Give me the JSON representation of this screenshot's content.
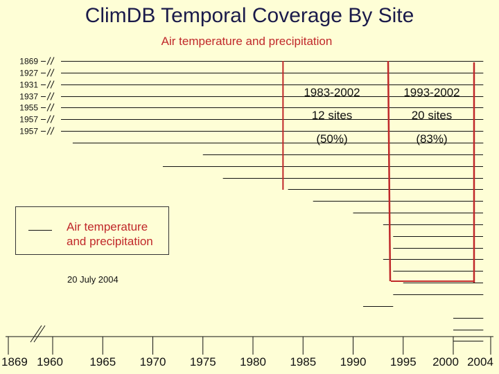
{
  "title": "ClimDB Temporal Coverage By Site",
  "subtitle": "Air temperature and precipitation",
  "legend": {
    "label_line1": "Air temperature",
    "label_line2": "and precipitation"
  },
  "footer": {
    "date": "20 July 2004"
  },
  "stats": [
    {
      "period": "1983-2002",
      "sites": "12 sites",
      "percent": "(50%)"
    },
    {
      "period": "1993-2002",
      "sites": "20 sites",
      "percent": "(83%)"
    }
  ],
  "colors": {
    "background": "#fefed6",
    "title": "#1a1a4a",
    "accent": "#c0282a",
    "line": "#111111",
    "marker": "#c0282a"
  },
  "chart_data": {
    "type": "gantt",
    "title": "ClimDB Temporal Coverage By Site",
    "subtitle": "Air temperature and precipitation",
    "xlabel": "",
    "ylabel": "",
    "x_ticks": [
      "1869",
      "1960",
      "1965",
      "1970",
      "1975",
      "1980",
      "1985",
      "1990",
      "1995",
      "2000",
      "2004"
    ],
    "x_axis_break": "between 1869 and 1960",
    "reference_ranges": [
      [
        1983,
        2002
      ],
      [
        1993,
        2002
      ]
    ],
    "site_start_labels": [
      "1869",
      "1927",
      "1931",
      "1937",
      "1955",
      "1957",
      "1957"
    ],
    "series": [
      {
        "name": "Air temperature and precipitation",
        "ranges": [
          [
            1869,
            2003
          ],
          [
            1927,
            2003
          ],
          [
            1931,
            2003
          ],
          [
            1937,
            2003
          ],
          [
            1955,
            2003
          ],
          [
            1957,
            2003
          ],
          [
            1957,
            2003
          ],
          [
            1962,
            2003
          ],
          [
            1975,
            2004
          ],
          [
            1971,
            2004
          ],
          [
            1977,
            2004
          ],
          [
            1983.5,
            2004
          ],
          [
            1986,
            2004
          ],
          [
            1990,
            2004
          ],
          [
            1993,
            2004
          ],
          [
            1994,
            2004
          ],
          [
            1994,
            2004
          ],
          [
            1993,
            2003
          ],
          [
            1994,
            2004
          ],
          [
            1995,
            2004
          ],
          [
            1994,
            2003
          ],
          [
            1991,
            1994
          ],
          [
            2000,
            2003
          ],
          [
            2000,
            2003
          ],
          [
            2000,
            2003
          ]
        ]
      }
    ]
  }
}
